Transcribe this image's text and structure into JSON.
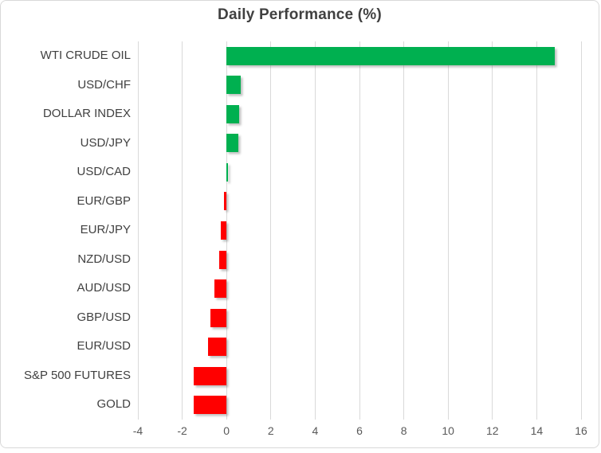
{
  "chart_data": {
    "type": "bar",
    "orientation": "horizontal",
    "title": "Daily Performance (%)",
    "categories": [
      "WTI CRUDE OIL",
      "USD/CHF",
      "DOLLAR INDEX",
      "USD/JPY",
      "USD/CAD",
      "EUR/GBP",
      "EUR/JPY",
      "NZD/USD",
      "AUD/USD",
      "GBP/USD",
      "EUR/USD",
      "S&P 500 FUTURES",
      "GOLD"
    ],
    "values": [
      14.8,
      0.65,
      0.57,
      0.55,
      0.08,
      -0.12,
      -0.26,
      -0.33,
      -0.55,
      -0.72,
      -0.84,
      -1.48,
      -1.48
    ],
    "xlabel": "",
    "ylabel": "",
    "xlim": [
      -4,
      16
    ],
    "x_ticks": [
      -4,
      -2,
      0,
      2,
      4,
      6,
      8,
      10,
      12,
      14,
      16
    ],
    "grid": true,
    "legend_position": "none",
    "colors": {
      "positive": "#00B050",
      "negative": "#FF0000",
      "gridline": "#D9D9D9",
      "border": "#D9D9D9",
      "title": "#404040",
      "category_label": "#404040",
      "tick_label": "#595959",
      "background": "#FFFFFF"
    }
  }
}
